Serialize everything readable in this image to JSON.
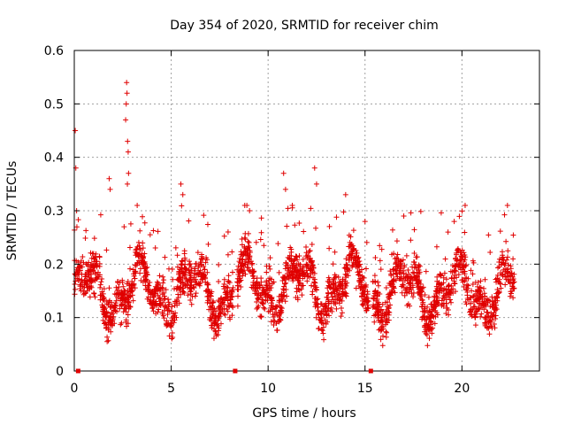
{
  "chart_data": {
    "type": "scatter",
    "title": "Day 354 of 2020, SRMTID for receiver chim",
    "xlabel": "GPS time / hours",
    "ylabel": "SRMTID / TECUs",
    "xlim": [
      0,
      24
    ],
    "ylim": [
      0,
      0.6
    ],
    "xticks": [
      0,
      5,
      10,
      15,
      20
    ],
    "yticks": [
      0,
      0.1,
      0.2,
      0.3,
      0.4,
      0.5,
      0.6
    ],
    "xtick_labels": [
      "0",
      "5",
      "10",
      "15",
      "20"
    ],
    "ytick_labels": [
      "0",
      "0.1",
      "0.2",
      "0.3",
      "0.4",
      "0.5",
      "0.6"
    ],
    "grid": true,
    "marker": "+",
    "series_color": "#e00000",
    "gap_markers_x": [
      0.2,
      8.3,
      15.3
    ],
    "segments": [
      {
        "start": 0.0,
        "end": 8.2,
        "base": 0.15
      },
      {
        "start": 8.4,
        "end": 15.2,
        "base": 0.16
      },
      {
        "start": 15.4,
        "end": 22.7,
        "base": 0.15
      }
    ],
    "peaks": [
      {
        "x": 0.05,
        "y": 0.45
      },
      {
        "x": 0.08,
        "y": 0.38
      },
      {
        "x": 0.12,
        "y": 0.3
      },
      {
        "x": 1.8,
        "y": 0.36
      },
      {
        "x": 1.85,
        "y": 0.34
      },
      {
        "x": 2.7,
        "y": 0.54
      },
      {
        "x": 2.72,
        "y": 0.52
      },
      {
        "x": 2.68,
        "y": 0.5
      },
      {
        "x": 2.65,
        "y": 0.47
      },
      {
        "x": 2.75,
        "y": 0.43
      },
      {
        "x": 2.78,
        "y": 0.41
      },
      {
        "x": 2.8,
        "y": 0.37
      },
      {
        "x": 2.74,
        "y": 0.35
      },
      {
        "x": 5.5,
        "y": 0.35
      },
      {
        "x": 5.6,
        "y": 0.33
      },
      {
        "x": 10.8,
        "y": 0.37
      },
      {
        "x": 10.9,
        "y": 0.34
      },
      {
        "x": 12.4,
        "y": 0.38
      },
      {
        "x": 12.5,
        "y": 0.35
      },
      {
        "x": 14.0,
        "y": 0.33
      },
      {
        "x": 15.0,
        "y": 0.28
      },
      {
        "x": 17.0,
        "y": 0.29
      },
      {
        "x": 19.6,
        "y": 0.28
      }
    ]
  }
}
